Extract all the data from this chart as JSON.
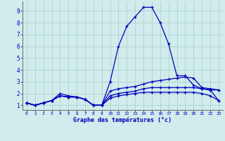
{
  "xlabel": "Graphe des températures (°c)",
  "background_color": "#d0ecec",
  "grid_color": "#a8cccc",
  "line_color": "#0000bb",
  "label_color": "#0000bb",
  "xlim_min": -0.5,
  "xlim_max": 23.5,
  "ylim_min": 0.6,
  "ylim_max": 9.8,
  "xticks": [
    0,
    1,
    2,
    3,
    4,
    5,
    6,
    7,
    8,
    9,
    10,
    11,
    12,
    13,
    14,
    15,
    16,
    17,
    18,
    19,
    20,
    21,
    22,
    23
  ],
  "yticks": [
    1,
    2,
    3,
    4,
    5,
    6,
    7,
    8,
    9
  ],
  "series": [
    [
      1.2,
      1.0,
      1.2,
      1.4,
      2.0,
      1.8,
      1.7,
      1.5,
      1.0,
      1.0,
      3.0,
      6.0,
      7.7,
      8.5,
      9.3,
      9.3,
      8.0,
      6.2,
      3.5,
      3.5,
      2.7,
      2.4,
      2.3,
      2.3
    ],
    [
      1.2,
      1.0,
      1.2,
      1.4,
      1.8,
      1.7,
      1.7,
      1.5,
      1.0,
      1.0,
      2.2,
      2.4,
      2.5,
      2.6,
      2.8,
      3.0,
      3.1,
      3.2,
      3.3,
      3.4,
      3.3,
      2.5,
      2.4,
      2.3
    ],
    [
      1.2,
      1.0,
      1.2,
      1.4,
      1.8,
      1.7,
      1.7,
      1.5,
      1.0,
      1.0,
      1.8,
      2.0,
      2.1,
      2.2,
      2.4,
      2.5,
      2.5,
      2.5,
      2.5,
      2.5,
      2.5,
      2.4,
      2.3,
      1.4
    ],
    [
      1.2,
      1.0,
      1.2,
      1.4,
      1.8,
      1.7,
      1.7,
      1.5,
      1.0,
      1.0,
      1.6,
      1.8,
      1.9,
      2.0,
      2.1,
      2.1,
      2.1,
      2.1,
      2.1,
      2.1,
      2.1,
      2.0,
      1.8,
      1.4
    ]
  ]
}
